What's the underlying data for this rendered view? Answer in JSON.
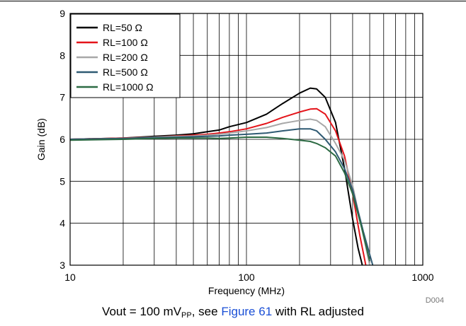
{
  "chart_data": {
    "type": "line",
    "xlabel": "Frequency (MHz)",
    "ylabel": "Gain (dB)",
    "xscale": "log",
    "xlim": [
      10,
      1000
    ],
    "ylim": [
      3,
      9
    ],
    "x_ticks": [
      "10",
      "100",
      "1000"
    ],
    "y_ticks": [
      "3",
      "4",
      "5",
      "6",
      "7",
      "8",
      "9"
    ],
    "grid": true,
    "legend_position": "top-left",
    "tag": "D004",
    "series": [
      {
        "name": "RL=50 Ω",
        "color": "#000000",
        "x": [
          10,
          20,
          30,
          40,
          50,
          60,
          70,
          80,
          100,
          130,
          160,
          200,
          230,
          250,
          280,
          320,
          360,
          400,
          430,
          460
        ],
        "y": [
          6.0,
          6.03,
          6.07,
          6.1,
          6.13,
          6.18,
          6.22,
          6.3,
          6.4,
          6.6,
          6.85,
          7.1,
          7.22,
          7.2,
          7.0,
          6.4,
          5.3,
          4.1,
          3.4,
          2.9
        ]
      },
      {
        "name": "RL=100 Ω",
        "color": "#e4141a",
        "x": [
          10,
          20,
          30,
          40,
          50,
          60,
          70,
          80,
          100,
          130,
          160,
          200,
          230,
          250,
          280,
          320,
          360,
          400,
          440,
          480
        ],
        "y": [
          6.0,
          6.03,
          6.05,
          6.08,
          6.1,
          6.12,
          6.15,
          6.18,
          6.25,
          6.38,
          6.52,
          6.65,
          6.72,
          6.73,
          6.6,
          6.2,
          5.6,
          4.7,
          3.7,
          2.9
        ]
      },
      {
        "name": "RL=200 Ω",
        "color": "#a8a8a8",
        "x": [
          10,
          20,
          30,
          40,
          50,
          60,
          70,
          80,
          100,
          130,
          160,
          200,
          230,
          250,
          280,
          320,
          360,
          400,
          450,
          500
        ],
        "y": [
          6.0,
          6.02,
          6.05,
          6.07,
          6.08,
          6.1,
          6.12,
          6.15,
          6.2,
          6.28,
          6.38,
          6.45,
          6.48,
          6.45,
          6.3,
          5.9,
          5.5,
          4.9,
          3.9,
          3.0
        ]
      },
      {
        "name": "RL=500 Ω",
        "color": "#2f5a73",
        "x": [
          10,
          20,
          30,
          40,
          50,
          60,
          70,
          80,
          100,
          130,
          160,
          200,
          230,
          250,
          280,
          320,
          360,
          400,
          460,
          520
        ],
        "y": [
          6.0,
          6.02,
          6.04,
          6.05,
          6.06,
          6.07,
          6.08,
          6.1,
          6.12,
          6.15,
          6.2,
          6.25,
          6.25,
          6.2,
          6.0,
          5.7,
          5.3,
          4.8,
          3.8,
          3.0
        ]
      },
      {
        "name": "RL=1000 Ω",
        "color": "#2c6a43",
        "x": [
          10,
          20,
          30,
          40,
          50,
          60,
          70,
          80,
          100,
          130,
          160,
          200,
          230,
          250,
          280,
          320,
          360,
          400,
          450,
          500
        ],
        "y": [
          5.98,
          6.0,
          6.02,
          6.03,
          6.03,
          6.03,
          6.02,
          6.03,
          6.05,
          6.05,
          6.02,
          5.98,
          5.95,
          5.9,
          5.8,
          5.6,
          5.2,
          4.7,
          3.9,
          3.1
        ]
      }
    ]
  },
  "caption": {
    "prefix": "Vout = 100 mV",
    "subscript": "PP",
    "middle": ", see ",
    "link": "Figure 61",
    "suffix": " with RL adjusted"
  }
}
